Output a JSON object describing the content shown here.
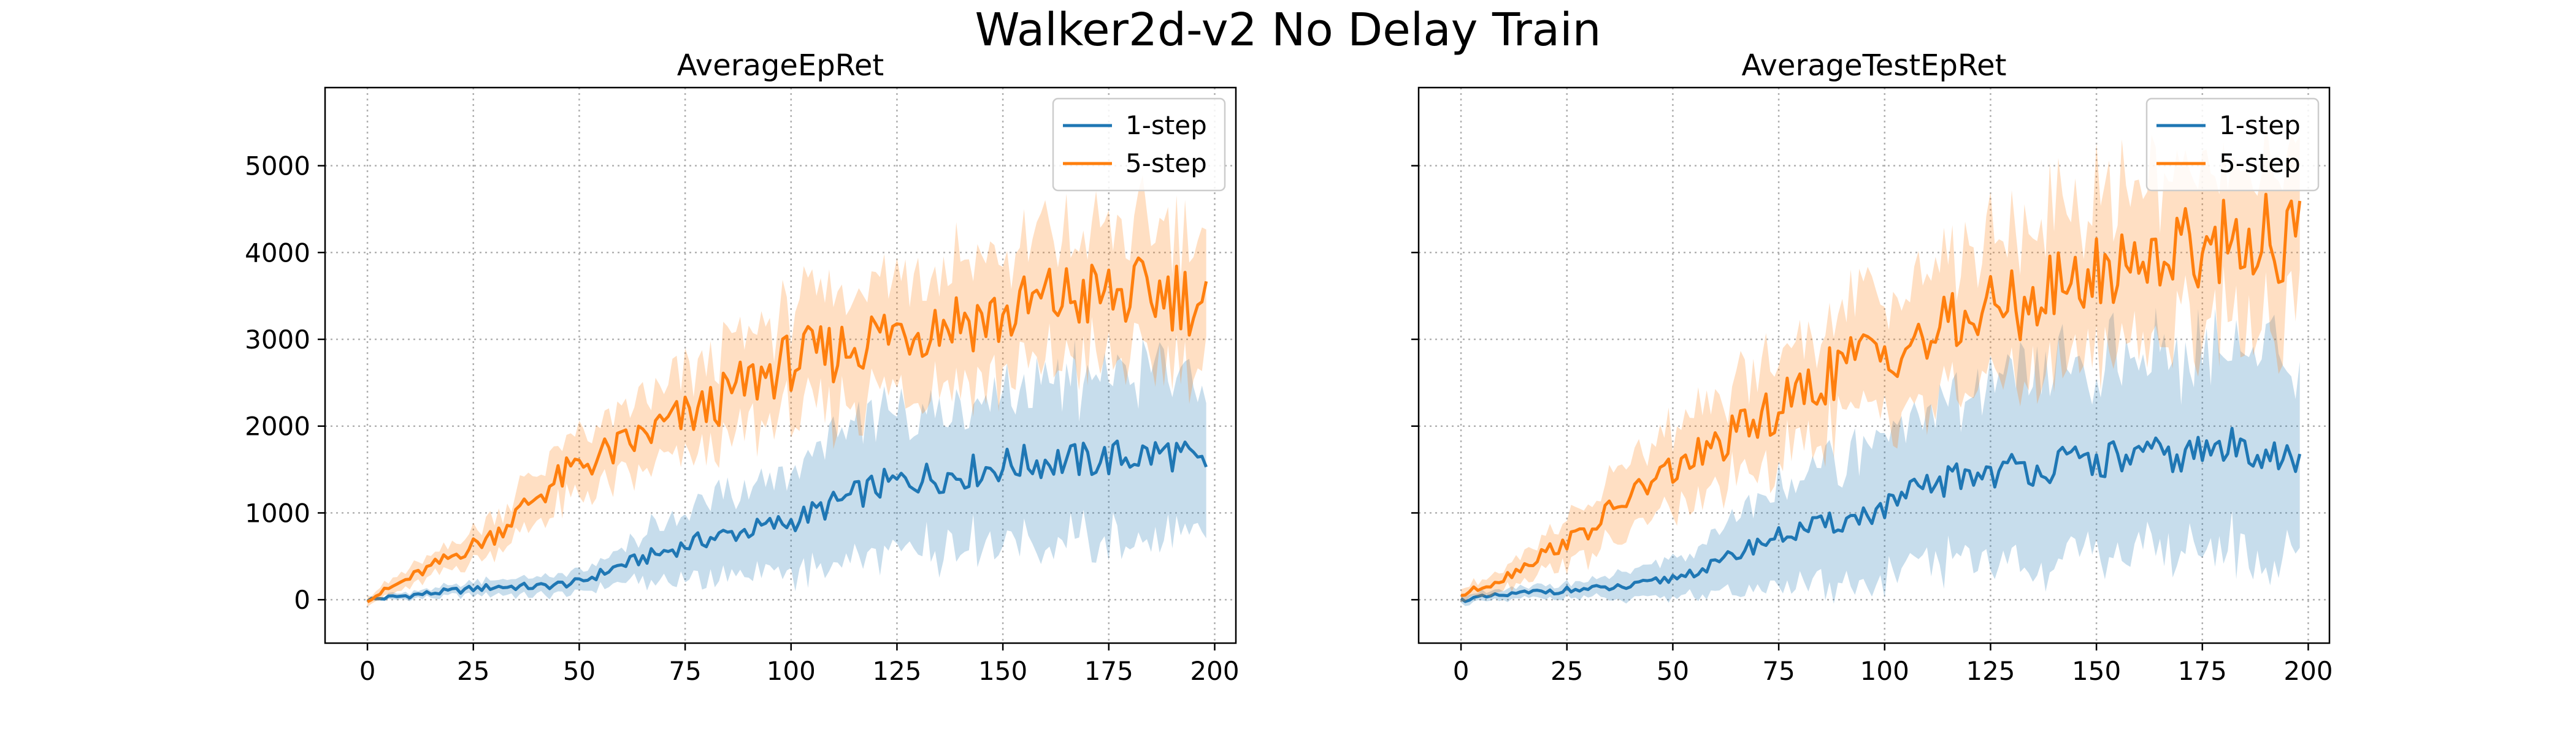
{
  "figure": {
    "title": "Walker2d-v2 No Delay Train"
  },
  "colors": {
    "one_step": "#1f77b4",
    "five_step": "#ff7f0e",
    "grid": "#b0b0b0"
  },
  "chart_data": [
    {
      "type": "line",
      "title": "AverageEpRet",
      "xlabel": "",
      "ylabel": "",
      "xlim": [
        -10,
        205
      ],
      "ylim": [
        -500,
        5900
      ],
      "xticks": [
        0,
        25,
        50,
        75,
        100,
        125,
        150,
        175,
        200
      ],
      "yticks": [
        0,
        1000,
        2000,
        3000,
        4000,
        5000
      ],
      "grid": true,
      "legend": "top-right",
      "band_note": "shaded band = mean +/- spread",
      "x": [
        0,
        10,
        20,
        30,
        40,
        50,
        60,
        70,
        80,
        90,
        100,
        110,
        120,
        130,
        140,
        150,
        160,
        170,
        180,
        190,
        198
      ],
      "series": [
        {
          "name": "1-step",
          "color": "#1f77b4",
          "values": [
            0,
            50,
            100,
            150,
            150,
            200,
            400,
            550,
            700,
            800,
            900,
            1100,
            1300,
            1400,
            1450,
            1550,
            1600,
            1600,
            1650,
            1700,
            1500
          ],
          "spread": [
            20,
            40,
            60,
            80,
            100,
            120,
            220,
            330,
            450,
            520,
            600,
            700,
            750,
            800,
            820,
            850,
            900,
            900,
            950,
            950,
            950
          ]
        },
        {
          "name": "5-step",
          "color": "#ff7f0e",
          "values": [
            0,
            250,
            500,
            750,
            1200,
            1550,
            1750,
            2000,
            2200,
            2500,
            2750,
            2850,
            3050,
            3150,
            3250,
            3250,
            3450,
            3500,
            3500,
            3550,
            3400
          ],
          "spread": [
            50,
            100,
            150,
            200,
            300,
            350,
            400,
            450,
            500,
            550,
            600,
            650,
            700,
            700,
            700,
            700,
            750,
            750,
            750,
            750,
            700
          ]
        }
      ]
    },
    {
      "type": "line",
      "title": "AverageTestEpRet",
      "xlabel": "",
      "ylabel": "",
      "xlim": [
        -10,
        205
      ],
      "ylim": [
        -500,
        5900
      ],
      "xticks": [
        0,
        25,
        50,
        75,
        100,
        125,
        150,
        175,
        200
      ],
      "yticks": [
        0,
        1000,
        2000,
        3000,
        4000,
        5000
      ],
      "grid": true,
      "legend": "top-right",
      "x": [
        0,
        10,
        20,
        30,
        40,
        50,
        60,
        70,
        80,
        90,
        100,
        110,
        120,
        130,
        140,
        150,
        160,
        170,
        180,
        190,
        198
      ],
      "series": [
        {
          "name": "1-step",
          "color": "#1f77b4",
          "values": [
            0,
            50,
            100,
            120,
            150,
            250,
            400,
            650,
            800,
            900,
            1050,
            1300,
            1450,
            1500,
            1550,
            1600,
            1650,
            1650,
            1750,
            1750,
            1500
          ],
          "spread": [
            50,
            60,
            80,
            100,
            150,
            200,
            350,
            500,
            650,
            750,
            850,
            900,
            1000,
            1050,
            1100,
            1100,
            1150,
            1150,
            1200,
            1200,
            1100
          ]
        },
        {
          "name": "5-step",
          "color": "#ff7f0e",
          "values": [
            50,
            250,
            550,
            800,
            1200,
            1500,
            1750,
            2050,
            2350,
            2700,
            2900,
            3000,
            3250,
            3400,
            3550,
            3750,
            3950,
            4050,
            4150,
            4200,
            4100
          ],
          "spread": [
            60,
            120,
            200,
            300,
            400,
            450,
            500,
            550,
            600,
            650,
            700,
            750,
            800,
            800,
            850,
            850,
            900,
            900,
            900,
            900,
            850
          ]
        }
      ]
    }
  ]
}
